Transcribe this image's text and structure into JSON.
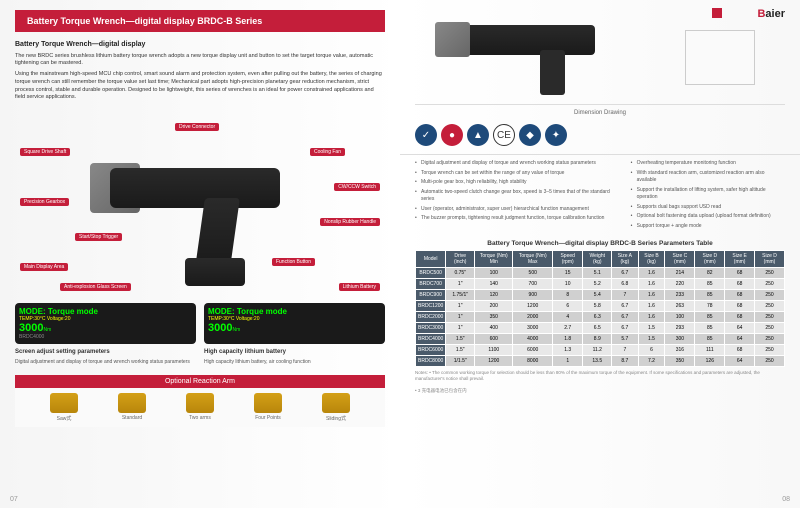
{
  "brand": {
    "name": "Baier",
    "accent": "#c41e3a"
  },
  "left": {
    "header": "Battery Torque Wrench—digital display BRDC-B Series",
    "subtitle": "Battery Torque Wrench—digital display",
    "para1": "The new BRDC series brushless lithium battery torque wrench adopts a new torque display unit and button to set the target torque value, automatic tightening can be mastered.",
    "para2": "Using the mainstream high-speed MCU chip control, smart sound alarm and protection system, even after pulling out the battery, the series of charging torque wrench can still remember the torque value set last time; Mechanical part adopts high-precision planetary gear reduction mechanism, strict process control, stable and durable operation. Designed to be lightweight, this series of wrenches is an ideal for power constrained applications and field service applications.",
    "callouts": {
      "c1": "Square Drive Shaft",
      "c2": "Drive Connector",
      "c3": "Cooling Fan",
      "c4": "Precision Gearbox",
      "c5": "CW/CCW Switch",
      "c6": "Start/Stop Trigger",
      "c7": "Nonslip Rubber Handle",
      "c8": "Main Display Area",
      "c9": "Anti-explosion Glass Screen",
      "c10": "Function Button",
      "c11": "Lithium Battery"
    },
    "display1": {
      "l1": "MODE: Torque mode",
      "l2": "TEMP:30°C Voltage:20",
      "l3": "3000",
      "unit": "Nm",
      "model": "BRDC4000"
    },
    "display2": {
      "l1": "MODE: Torque mode",
      "l2": "TEMP:30°C Voltage:20",
      "l3": "3000",
      "unit": "Nm"
    },
    "feat1": {
      "title": "Screen adjust setting parameters",
      "body": "Digital adjustment and display of torque and wrench working status parameters"
    },
    "feat2": {
      "title": "High capacity lithium battery",
      "body": "High capacity lithium battery, air cooling function"
    },
    "optHeader": "Optional Reaction Arm",
    "opts": [
      "Saw式",
      "Standard",
      "Two arms",
      "Four Points",
      "Sliding式"
    ],
    "pgnum": "07"
  },
  "right": {
    "dimLabel": "Dimension Drawing",
    "badges": [
      {
        "bg": "#1e4a7a",
        "txt": "✓"
      },
      {
        "bg": "#c41e3a",
        "txt": "●"
      },
      {
        "bg": "#1e4a7a",
        "txt": "▲"
      },
      {
        "bg": "#ffffff",
        "txt": "CE",
        "color": "#333",
        "border": "1px solid #333"
      },
      {
        "bg": "#1e4a7a",
        "txt": "◆"
      },
      {
        "bg": "#1e4a7a",
        "txt": "✦"
      }
    ],
    "specsL": [
      "Digital adjustment and display of torque and wrench working status parameters",
      "Torque wrench can be set within the range of any value of torque",
      "Multi-pole gear box, high reliability, high stability",
      "Automatic two-speed clutch change gear box, speed is 3–5 times that of the standard series",
      "User (operator, administrator, super user) hierarchical function management",
      "The buzzer prompts, tightening result judgment function, torque calibration function"
    ],
    "specsR": [
      "Overheating temperature monitoring function",
      "With standard reaction arm, customized reaction arm also available",
      "Support the installation of lifting system, safer high altitude operation",
      "Supports dual bags support USD read",
      "Optional bolt fastening data upload (upload format definition)",
      "Support torque + angle mode"
    ],
    "tableTitle": "Battery Torque Wrench—digital display BRDC-B Series Parameters Table",
    "cols": [
      "Model",
      "Drive (inch)",
      "Torque (Nm) Min",
      "Torque (Nm) Max",
      "Speed (rpm)",
      "Weight (kg)",
      "Size A (kg)",
      "Size B (kg)",
      "Size C (mm)",
      "Size D (mm)",
      "Size E (mm)",
      "Size D (mm)"
    ],
    "rows": [
      [
        "BRDC500",
        "0.75\"",
        "100",
        "500",
        "15",
        "5.1",
        "6.7",
        "1.6",
        "214",
        "82",
        "68",
        "250"
      ],
      [
        "BRDC700",
        "1\"",
        "140",
        "700",
        "10",
        "5.2",
        "6.8",
        "1.6",
        "220",
        "85",
        "68",
        "250"
      ],
      [
        "BRDC900",
        "1.75/1\"",
        "120",
        "900",
        "8",
        "5.4",
        "7",
        "1.6",
        "233",
        "85",
        "68",
        "250"
      ],
      [
        "BRDC1200",
        "1\"",
        "200",
        "1200",
        "6",
        "5.8",
        "6.7",
        "1.6",
        "263",
        "78",
        "68",
        "250"
      ],
      [
        "BRDC2000",
        "1\"",
        "350",
        "2000",
        "4",
        "6.3",
        "6.7",
        "1.6",
        "100",
        "85",
        "68",
        "250"
      ],
      [
        "BRDC3000",
        "1\"",
        "400",
        "3000",
        "2.7",
        "6.5",
        "6.7",
        "1.5",
        "293",
        "85",
        "64",
        "250"
      ],
      [
        "BRDC4000",
        "1.5\"",
        "600",
        "4000",
        "1.8",
        "8.9",
        "5.7",
        "1.5",
        "300",
        "85",
        "64",
        "250"
      ],
      [
        "BRDC6000",
        "1.5\"",
        "1100",
        "6000",
        "1.3",
        "11.2",
        "7",
        "6",
        "316",
        "111",
        "68",
        "250"
      ],
      [
        "BRDC8000",
        "1/1.5\"",
        "1200",
        "8000",
        "1",
        "13.5",
        "8.7",
        "7.2",
        "350",
        "126",
        "64",
        "250"
      ]
    ],
    "note1": "Notes: • The common working torque for selection should be less than 80% of the maximum torque of the equipment. If some specifications and parameters are adjusted, the manufacturer's notice shall prevail.",
    "note2": "• 3 充电器电池已包含在内",
    "pgnum": "08"
  }
}
